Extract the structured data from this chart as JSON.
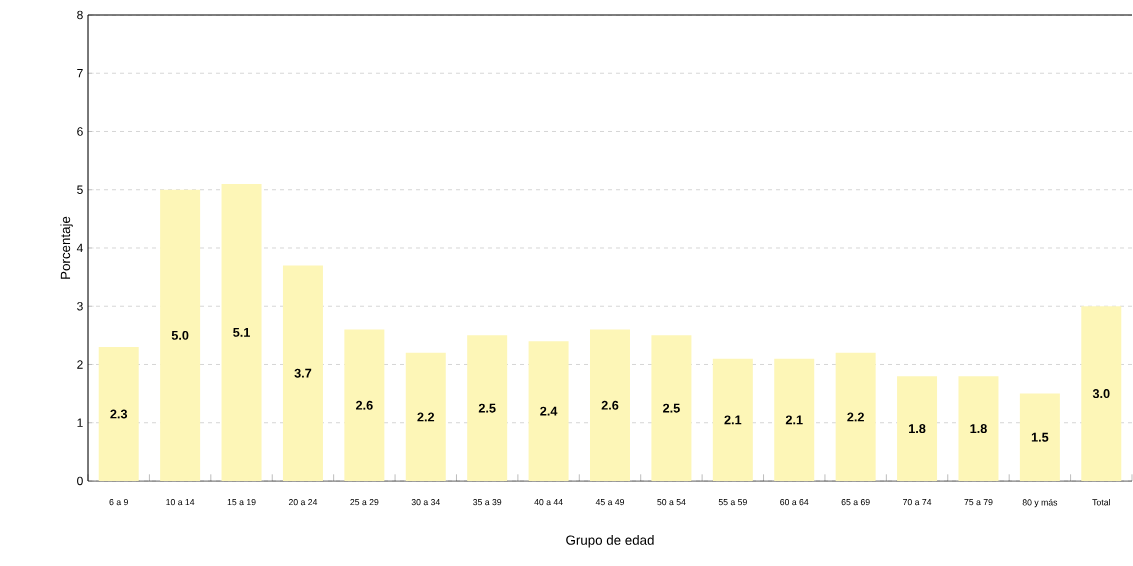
{
  "chart_data": {
    "type": "bar",
    "xlabel": "Grupo de edad",
    "ylabel": "Porcentaje",
    "categories": [
      "6 a 9",
      "10 a 14",
      "15 a 19",
      "20 a 24",
      "25 a 29",
      "30 a 34",
      "35 a 39",
      "40 a 44",
      "45 a 49",
      "50 a 54",
      "55 a 59",
      "60 a 64",
      "65 a 69",
      "70 a 74",
      "75 a 79",
      "80 y más",
      "Total"
    ],
    "values": [
      2.3,
      5.0,
      5.1,
      3.7,
      2.6,
      2.2,
      2.5,
      2.4,
      2.6,
      2.5,
      2.1,
      2.1,
      2.2,
      1.8,
      1.8,
      1.5,
      3.0
    ],
    "value_labels": [
      "2.3",
      "5.0",
      "5.1",
      "3.7",
      "2.6",
      "2.2",
      "2.5",
      "2.4",
      "2.6",
      "2.5",
      "2.1",
      "2.1",
      "2.2",
      "1.8",
      "1.8",
      "1.5",
      "3.0"
    ],
    "color": "#fdf6b7",
    "ylim": [
      0,
      8
    ],
    "yticks": [
      0,
      1,
      2,
      3,
      4,
      5,
      6,
      7,
      8
    ],
    "grid": "y"
  }
}
